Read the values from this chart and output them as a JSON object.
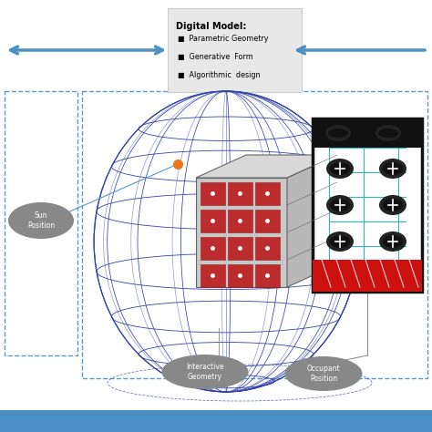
{
  "bg_color": "#ffffff",
  "top_box_text": "Digital Model:",
  "top_box_bullets": [
    "Parametric Geometry",
    "Generative  Form",
    "Algorithmic  design"
  ],
  "arrow_color": "#4a90c4",
  "dashed_color": "#5599cc",
  "ellipse_color": "#888888",
  "ellipse_text_color": "#ffffff",
  "bottom_bar_color": "#4a90c4",
  "sphere_color": "#3344aa",
  "sun_dot_color": "#e87820"
}
